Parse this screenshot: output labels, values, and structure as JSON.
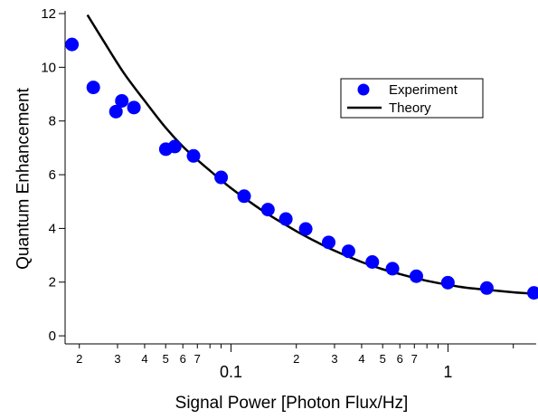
{
  "chart_data": {
    "type": "scatter",
    "title": "",
    "xlabel": "Signal  Power [Photon Flux/Hz]",
    "ylabel": "Quantum Enhancement",
    "xscale": "log",
    "xlim": [
      0.0172,
      2.55
    ],
    "ylim": [
      -0.3,
      12
    ],
    "grid": false,
    "legend_position": "upper-right",
    "yticks": [
      {
        "value": 0,
        "label": "0"
      },
      {
        "value": 2,
        "label": "2"
      },
      {
        "value": 4,
        "label": "4"
      },
      {
        "value": 6,
        "label": "6"
      },
      {
        "value": 8,
        "label": "8"
      },
      {
        "value": 10,
        "label": "10"
      },
      {
        "value": 12,
        "label": "12"
      }
    ],
    "xticks_major": [
      {
        "value": 0.1,
        "label": "0.1"
      },
      {
        "value": 1,
        "label": "1"
      }
    ],
    "xticks_minor": [
      {
        "value": 0.02,
        "label": "2"
      },
      {
        "value": 0.03,
        "label": "3"
      },
      {
        "value": 0.04,
        "label": "4"
      },
      {
        "value": 0.05,
        "label": "5"
      },
      {
        "value": 0.06,
        "label": "6"
      },
      {
        "value": 0.07,
        "label": "7"
      },
      {
        "value": 0.08,
        "label": ""
      },
      {
        "value": 0.09,
        "label": ""
      },
      {
        "value": 0.2,
        "label": "2"
      },
      {
        "value": 0.3,
        "label": "3"
      },
      {
        "value": 0.4,
        "label": "4"
      },
      {
        "value": 0.5,
        "label": "5"
      },
      {
        "value": 0.6,
        "label": "6"
      },
      {
        "value": 0.7,
        "label": "7"
      },
      {
        "value": 0.8,
        "label": ""
      },
      {
        "value": 0.9,
        "label": ""
      },
      {
        "value": 2,
        "label": ""
      }
    ],
    "series": [
      {
        "name": "Experiment",
        "type": "scatter",
        "color": "#0000ff",
        "x": [
          0.0185,
          0.0232,
          0.0295,
          0.0314,
          0.0357,
          0.0501,
          0.0551,
          0.0672,
          0.0901,
          0.115,
          0.148,
          0.179,
          0.221,
          0.282,
          0.348,
          0.448,
          0.555,
          0.715,
          0.999,
          1.51,
          2.49
        ],
        "y": [
          10.85,
          9.25,
          8.35,
          8.75,
          8.5,
          6.95,
          7.05,
          6.7,
          5.9,
          5.2,
          4.7,
          4.35,
          3.98,
          3.48,
          3.15,
          2.75,
          2.5,
          2.22,
          1.98,
          1.78,
          1.6
        ]
      },
      {
        "name": "Theory",
        "type": "line",
        "color": "#000000",
        "x": [
          0.0218,
          0.026,
          0.032,
          0.04,
          0.05,
          0.06,
          0.07,
          0.08,
          0.09,
          0.1,
          0.12,
          0.15,
          0.2,
          0.25,
          0.3,
          0.4,
          0.5,
          0.6,
          0.7,
          0.8,
          1.0,
          1.2,
          1.5,
          2.0,
          2.55
        ],
        "y": [
          11.95,
          10.95,
          9.8,
          8.75,
          7.75,
          7.05,
          6.55,
          6.15,
          5.8,
          5.5,
          5.03,
          4.5,
          3.9,
          3.48,
          3.17,
          2.75,
          2.48,
          2.3,
          2.16,
          2.05,
          1.9,
          1.8,
          1.72,
          1.62,
          1.56
        ]
      }
    ]
  }
}
